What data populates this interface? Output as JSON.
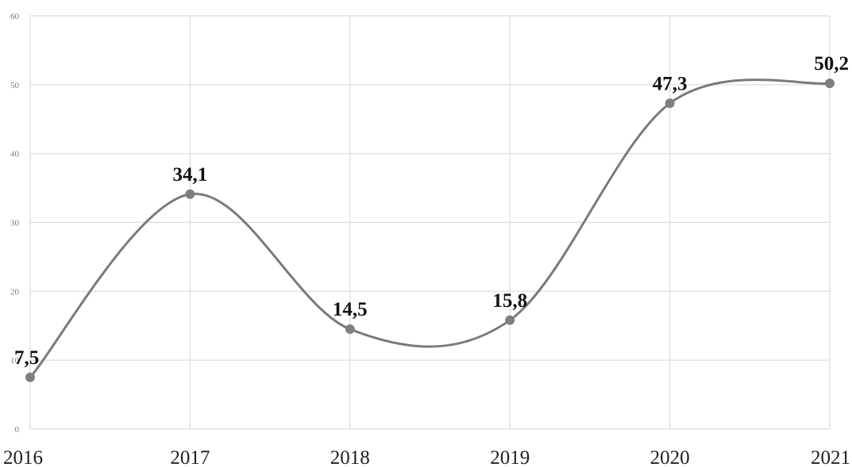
{
  "chart_data": {
    "type": "line",
    "title": "",
    "xlabel": "",
    "ylabel": "",
    "categories": [
      "2016",
      "2017",
      "2018",
      "2019",
      "2020",
      "2021"
    ],
    "series": [
      {
        "values": [
          7.5,
          34.1,
          14.5,
          15.8,
          47.3,
          50.2
        ]
      }
    ],
    "data_labels": [
      "7,5",
      "34,1",
      "14,5",
      "15,8",
      "47,3",
      "50,2"
    ],
    "y_ticks": [
      "0",
      "10",
      "20",
      "30",
      "40",
      "50",
      "60"
    ],
    "ylim": [
      0,
      60
    ],
    "smooth": true,
    "grid": true,
    "legend": "none",
    "colors": {
      "line": "#7a7a7a",
      "marker": "#7f7f7f",
      "grid": "#dcdcdc"
    }
  }
}
